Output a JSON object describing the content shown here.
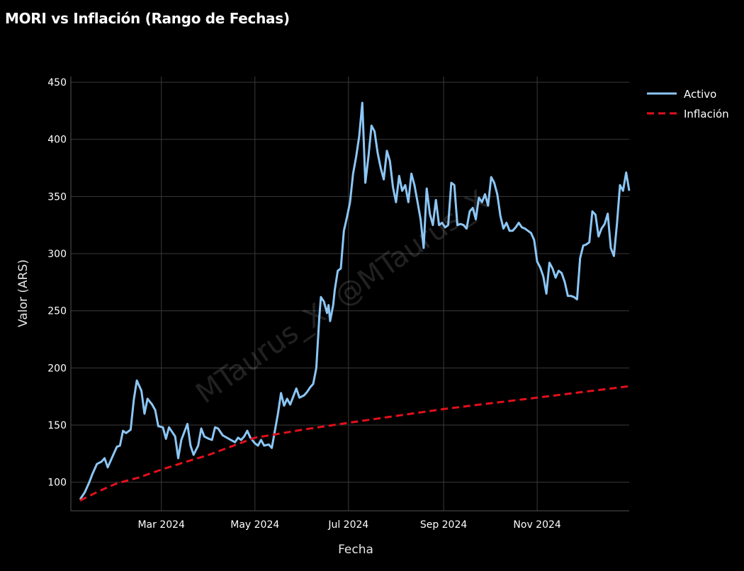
{
  "page": {
    "title": "MORI vs Inflación (Rango de Fechas)"
  },
  "watermark": "MTaurus_X: @MTaurus_X",
  "colors": {
    "background": "#000000",
    "grid": "#3a3a3a",
    "activo": "#8cc6f5",
    "inflacion": "#e3101b",
    "text": "#ffffff"
  },
  "chart_data": {
    "type": "line",
    "title": "MORI vs Inflación (Rango de Fechas)",
    "xlabel": "Fecha",
    "ylabel": "Valor (ARS)",
    "xlim": [
      "2024-01-02",
      "2024-12-31"
    ],
    "ylim": [
      75,
      455
    ],
    "grid": true,
    "legend_position": "top-right",
    "x_ticks": [
      {
        "date": "2024-03-01",
        "label": "Mar 2024"
      },
      {
        "date": "2024-05-01",
        "label": "May 2024"
      },
      {
        "date": "2024-07-01",
        "label": "Jul 2024"
      },
      {
        "date": "2024-09-01",
        "label": "Sep 2024"
      },
      {
        "date": "2024-11-01",
        "label": "Nov 2024"
      }
    ],
    "y_ticks": [
      100,
      150,
      200,
      250,
      300,
      350,
      400,
      450
    ],
    "series": [
      {
        "name": "Activo",
        "style": "solid",
        "color": "#8cc6f5",
        "points": [
          [
            "2024-01-08",
            85
          ],
          [
            "2024-01-11",
            91
          ],
          [
            "2024-01-14",
            100
          ],
          [
            "2024-01-16",
            107
          ],
          [
            "2024-01-19",
            116
          ],
          [
            "2024-01-22",
            118
          ],
          [
            "2024-01-24",
            121
          ],
          [
            "2024-01-26",
            113
          ],
          [
            "2024-01-28",
            119
          ],
          [
            "2024-01-30",
            125
          ],
          [
            "2024-02-01",
            131
          ],
          [
            "2024-02-03",
            132
          ],
          [
            "2024-02-05",
            145
          ],
          [
            "2024-02-07",
            143
          ],
          [
            "2024-02-10",
            146
          ],
          [
            "2024-02-12",
            172
          ],
          [
            "2024-02-14",
            189
          ],
          [
            "2024-02-17",
            180
          ],
          [
            "2024-02-19",
            160
          ],
          [
            "2024-02-21",
            173
          ],
          [
            "2024-02-24",
            168
          ],
          [
            "2024-02-26",
            163
          ],
          [
            "2024-02-28",
            149
          ],
          [
            "2024-03-02",
            148
          ],
          [
            "2024-03-04",
            138
          ],
          [
            "2024-03-06",
            148
          ],
          [
            "2024-03-08",
            144
          ],
          [
            "2024-03-10",
            140
          ],
          [
            "2024-03-12",
            121
          ],
          [
            "2024-03-14",
            137
          ],
          [
            "2024-03-16",
            144
          ],
          [
            "2024-03-18",
            151
          ],
          [
            "2024-03-20",
            132
          ],
          [
            "2024-03-22",
            124
          ],
          [
            "2024-03-25",
            132
          ],
          [
            "2024-03-27",
            147
          ],
          [
            "2024-03-29",
            140
          ],
          [
            "2024-04-01",
            138
          ],
          [
            "2024-04-03",
            137
          ],
          [
            "2024-04-05",
            148
          ],
          [
            "2024-04-07",
            147
          ],
          [
            "2024-04-10",
            141
          ],
          [
            "2024-04-14",
            138
          ],
          [
            "2024-04-18",
            135
          ],
          [
            "2024-04-20",
            139
          ],
          [
            "2024-04-22",
            137
          ],
          [
            "2024-04-24",
            140
          ],
          [
            "2024-04-26",
            145
          ],
          [
            "2024-04-28",
            139
          ],
          [
            "2024-05-01",
            134
          ],
          [
            "2024-05-03",
            132
          ],
          [
            "2024-05-05",
            137
          ],
          [
            "2024-05-07",
            132
          ],
          [
            "2024-05-10",
            133
          ],
          [
            "2024-05-12",
            130
          ],
          [
            "2024-05-16",
            160
          ],
          [
            "2024-05-18",
            178
          ],
          [
            "2024-05-20",
            167
          ],
          [
            "2024-05-22",
            173
          ],
          [
            "2024-05-24",
            168
          ],
          [
            "2024-05-26",
            175
          ],
          [
            "2024-05-28",
            182
          ],
          [
            "2024-05-30",
            174
          ],
          [
            "2024-06-02",
            176
          ],
          [
            "2024-06-04",
            179
          ],
          [
            "2024-06-06",
            183
          ],
          [
            "2024-06-08",
            186
          ],
          [
            "2024-06-10",
            200
          ],
          [
            "2024-06-12",
            245
          ],
          [
            "2024-06-13",
            262
          ],
          [
            "2024-06-15",
            258
          ],
          [
            "2024-06-17",
            248
          ],
          [
            "2024-06-18",
            255
          ],
          [
            "2024-06-19",
            241
          ],
          [
            "2024-06-21",
            255
          ],
          [
            "2024-06-22",
            268
          ],
          [
            "2024-06-24",
            285
          ],
          [
            "2024-06-26",
            287
          ],
          [
            "2024-06-28",
            320
          ],
          [
            "2024-06-30",
            332
          ],
          [
            "2024-07-02",
            345
          ],
          [
            "2024-07-04",
            370
          ],
          [
            "2024-07-06",
            385
          ],
          [
            "2024-07-08",
            403
          ],
          [
            "2024-07-10",
            432
          ],
          [
            "2024-07-12",
            362
          ],
          [
            "2024-07-14",
            385
          ],
          [
            "2024-07-16",
            412
          ],
          [
            "2024-07-18",
            407
          ],
          [
            "2024-07-20",
            388
          ],
          [
            "2024-07-22",
            375
          ],
          [
            "2024-07-24",
            365
          ],
          [
            "2024-07-26",
            390
          ],
          [
            "2024-07-28",
            381
          ],
          [
            "2024-07-30",
            358
          ],
          [
            "2024-08-01",
            345
          ],
          [
            "2024-08-03",
            368
          ],
          [
            "2024-08-05",
            355
          ],
          [
            "2024-08-07",
            360
          ],
          [
            "2024-08-09",
            345
          ],
          [
            "2024-08-11",
            370
          ],
          [
            "2024-08-13",
            360
          ],
          [
            "2024-08-15",
            345
          ],
          [
            "2024-08-17",
            330
          ],
          [
            "2024-08-19",
            305
          ],
          [
            "2024-08-21",
            357
          ],
          [
            "2024-08-23",
            335
          ],
          [
            "2024-08-25",
            325
          ],
          [
            "2024-08-27",
            347
          ],
          [
            "2024-08-29",
            325
          ],
          [
            "2024-08-31",
            327
          ],
          [
            "2024-09-02",
            323
          ],
          [
            "2024-09-04",
            325
          ],
          [
            "2024-09-06",
            362
          ],
          [
            "2024-09-08",
            360
          ],
          [
            "2024-09-10",
            325
          ],
          [
            "2024-09-12",
            326
          ],
          [
            "2024-09-14",
            325
          ],
          [
            "2024-09-16",
            322
          ],
          [
            "2024-09-18",
            337
          ],
          [
            "2024-09-20",
            340
          ],
          [
            "2024-09-22",
            330
          ],
          [
            "2024-09-24",
            349
          ],
          [
            "2024-09-26",
            345
          ],
          [
            "2024-09-28",
            352
          ],
          [
            "2024-09-30",
            342
          ],
          [
            "2024-10-02",
            367
          ],
          [
            "2024-10-04",
            362
          ],
          [
            "2024-10-06",
            352
          ],
          [
            "2024-10-08",
            333
          ],
          [
            "2024-10-10",
            322
          ],
          [
            "2024-10-12",
            327
          ],
          [
            "2024-10-14",
            320
          ],
          [
            "2024-10-16",
            320
          ],
          [
            "2024-10-18",
            323
          ],
          [
            "2024-10-20",
            327
          ],
          [
            "2024-10-22",
            323
          ],
          [
            "2024-10-24",
            322
          ],
          [
            "2024-10-26",
            320
          ],
          [
            "2024-10-28",
            318
          ],
          [
            "2024-10-30",
            312
          ],
          [
            "2024-11-01",
            293
          ],
          [
            "2024-11-03",
            288
          ],
          [
            "2024-11-05",
            280
          ],
          [
            "2024-11-07",
            265
          ],
          [
            "2024-11-09",
            292
          ],
          [
            "2024-11-11",
            287
          ],
          [
            "2024-11-13",
            279
          ],
          [
            "2024-11-15",
            285
          ],
          [
            "2024-11-17",
            283
          ],
          [
            "2024-11-19",
            275
          ],
          [
            "2024-11-21",
            263
          ],
          [
            "2024-11-23",
            263
          ],
          [
            "2024-11-25",
            262
          ],
          [
            "2024-11-27",
            260
          ],
          [
            "2024-11-29",
            296
          ],
          [
            "2024-12-01",
            307
          ],
          [
            "2024-12-03",
            308
          ],
          [
            "2024-12-05",
            310
          ],
          [
            "2024-12-07",
            337
          ],
          [
            "2024-12-09",
            334
          ],
          [
            "2024-12-11",
            315
          ],
          [
            "2024-12-13",
            322
          ],
          [
            "2024-12-15",
            326
          ],
          [
            "2024-12-17",
            335
          ],
          [
            "2024-12-19",
            305
          ],
          [
            "2024-12-21",
            298
          ],
          [
            "2024-12-23",
            326
          ],
          [
            "2024-12-25",
            360
          ],
          [
            "2024-12-27",
            355
          ],
          [
            "2024-12-29",
            371
          ],
          [
            "2024-12-31",
            355
          ]
        ]
      },
      {
        "name": "Inflación",
        "style": "dashed",
        "color": "#e3101b",
        "points": [
          [
            "2024-01-08",
            84
          ],
          [
            "2024-01-20",
            92
          ],
          [
            "2024-02-01",
            99
          ],
          [
            "2024-02-15",
            104
          ],
          [
            "2024-03-01",
            111
          ],
          [
            "2024-03-15",
            117
          ],
          [
            "2024-04-01",
            124
          ],
          [
            "2024-04-15",
            131
          ],
          [
            "2024-05-01",
            139
          ],
          [
            "2024-05-15",
            142
          ],
          [
            "2024-06-01",
            146
          ],
          [
            "2024-07-01",
            152
          ],
          [
            "2024-08-01",
            158
          ],
          [
            "2024-09-01",
            164
          ],
          [
            "2024-10-01",
            169
          ],
          [
            "2024-11-01",
            174
          ],
          [
            "2024-12-01",
            179
          ],
          [
            "2024-12-31",
            184
          ]
        ]
      }
    ]
  }
}
